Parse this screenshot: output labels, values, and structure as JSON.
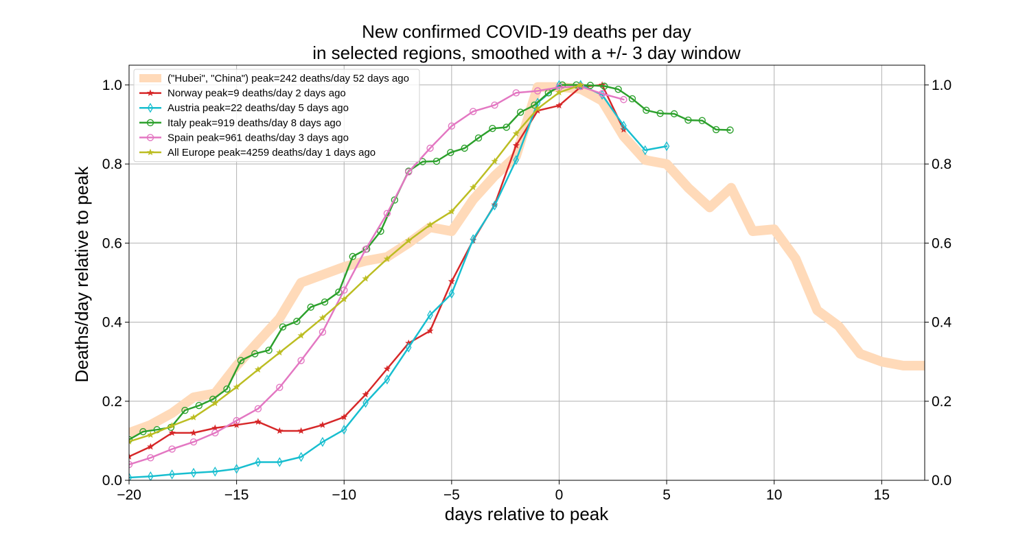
{
  "chart_data": {
    "type": "line",
    "title": [
      "New confirmed COVID-19 deaths per day",
      "in selected regions, smoothed with a +/- 3 day window"
    ],
    "xlabel": "days relative to peak",
    "ylabel": "Deaths/day relative to peak",
    "xlim": [
      -20,
      17
    ],
    "ylim": [
      0,
      1.05
    ],
    "xticks": [
      -20,
      -15,
      -10,
      -5,
      0,
      5,
      10,
      15
    ],
    "xtick_labels": [
      "−20",
      "−15",
      "−10",
      "−5",
      "0",
      "5",
      "10",
      "15"
    ],
    "yticks": [
      0,
      0.2,
      0.4,
      0.6,
      0.8,
      1.0
    ],
    "ytick_labels": [
      "0.0",
      "0.2",
      "0.4",
      "0.6",
      "0.8",
      "1.0"
    ],
    "grid": true,
    "right_axis_mirrored": true,
    "legend_position": "top-left",
    "series": [
      {
        "name": "(\"Hubei\", \"China\") peak=242 deaths/day 52 days ago",
        "color": "#ffdab9",
        "marker": "none",
        "thick": true,
        "x": [
          -20,
          -19,
          -18,
          -17,
          -16,
          -15,
          -14,
          -13,
          -12,
          -11,
          -10,
          -9,
          -8,
          -7,
          -6,
          -5,
          -4,
          -3,
          -2,
          -1,
          0,
          1,
          2,
          3,
          4,
          5,
          6,
          7,
          8,
          9,
          10,
          11,
          12,
          13,
          14,
          15,
          16,
          17
        ],
        "y": [
          0.12,
          0.14,
          0.17,
          0.21,
          0.22,
          0.29,
          0.35,
          0.41,
          0.5,
          0.52,
          0.54,
          0.555,
          0.565,
          0.6,
          0.64,
          0.63,
          0.71,
          0.77,
          0.82,
          0.995,
          0.995,
          0.99,
          0.96,
          0.87,
          0.81,
          0.8,
          0.74,
          0.69,
          0.74,
          0.63,
          0.635,
          0.56,
          0.43,
          0.39,
          0.32,
          0.3,
          0.29,
          0.29
        ]
      },
      {
        "name": "Norway peak=9 deaths/day 2 days ago",
        "color": "#d62728",
        "marker": "star",
        "x": [
          -20,
          -19,
          -18,
          -17,
          -16,
          -15,
          -14,
          -13,
          -12,
          -11,
          -10,
          -9,
          -8,
          -7,
          -6,
          -5,
          -4,
          -3,
          -2,
          -1,
          0,
          1,
          2,
          3
        ],
        "y": [
          0.06,
          0.085,
          0.12,
          0.12,
          0.132,
          0.14,
          0.148,
          0.125,
          0.125,
          0.14,
          0.16,
          0.217,
          0.282,
          0.347,
          0.378,
          0.503,
          0.607,
          0.697,
          0.847,
          0.935,
          0.948,
          0.995,
          1.0,
          0.887
        ]
      },
      {
        "name": "Austria peak=22 deaths/day 5 days ago",
        "color": "#17becf",
        "marker": "thin_diamond",
        "x": [
          -20,
          -19,
          -18,
          -17,
          -16,
          -15,
          -14,
          -13,
          -12,
          -11,
          -10,
          -9,
          -8,
          -7,
          -6,
          -5,
          -4,
          -3,
          -2,
          -1,
          0,
          1,
          2,
          3,
          4,
          5
        ],
        "y": [
          0.007,
          0.01,
          0.015,
          0.019,
          0.022,
          0.029,
          0.046,
          0.046,
          0.059,
          0.097,
          0.128,
          0.196,
          0.255,
          0.336,
          0.418,
          0.472,
          0.61,
          0.695,
          0.81,
          0.955,
          1.0,
          1.0,
          0.975,
          0.897,
          0.835,
          0.845
        ]
      },
      {
        "name": "Italy peak=919 deaths/day 8 days ago",
        "color": "#2ca02c",
        "marker": "circle",
        "x": [
          -20,
          -19.35,
          -18.7,
          -18.05,
          -17.4,
          -16.75,
          -16.1,
          -15.45,
          -14.8,
          -14.15,
          -13.5,
          -12.85,
          -12.2,
          -11.55,
          -10.9,
          -10.25,
          -9.6,
          -8.95,
          -8.3,
          -7.65,
          -7,
          -6.35,
          -5.7,
          -5.05,
          -4.4,
          -3.75,
          -3.1,
          -2.45,
          -1.8,
          -1.15,
          -0.5,
          0.15,
          0.8,
          1.45,
          2.1,
          2.75,
          3.4,
          4.05,
          4.7,
          5.35,
          6,
          6.65,
          7.3,
          7.95
        ],
        "y": [
          0.103,
          0.123,
          0.128,
          0.134,
          0.177,
          0.189,
          0.205,
          0.231,
          0.303,
          0.32,
          0.329,
          0.388,
          0.402,
          0.438,
          0.451,
          0.476,
          0.566,
          0.585,
          0.63,
          0.709,
          0.782,
          0.806,
          0.807,
          0.829,
          0.84,
          0.866,
          0.89,
          0.893,
          0.931,
          0.949,
          0.98,
          1.0,
          1.0,
          0.999,
          0.997,
          0.989,
          0.965,
          0.936,
          0.928,
          0.927,
          0.911,
          0.91,
          0.887,
          0.886
        ]
      },
      {
        "name": "Spain peak=961 deaths/day 3 days ago",
        "color": "#e377c2",
        "marker": "circle",
        "x": [
          -20,
          -19,
          -18,
          -17,
          -16,
          -15,
          -14,
          -13,
          -12,
          -11,
          -10,
          -9,
          -8,
          -7,
          -6,
          -5,
          -4,
          -3,
          -2,
          -1,
          0,
          1,
          2,
          3
        ],
        "y": [
          0.04,
          0.057,
          0.079,
          0.097,
          0.12,
          0.151,
          0.181,
          0.235,
          0.303,
          0.375,
          0.481,
          0.584,
          0.675,
          0.78,
          0.84,
          0.896,
          0.933,
          0.949,
          0.98,
          0.985,
          0.994,
          0.996,
          0.978,
          0.963
        ]
      },
      {
        "name": "All Europe peak=4259 deaths/day 1 days ago",
        "color": "#bcbd22",
        "marker": "star",
        "x": [
          -20,
          -19,
          -18,
          -17,
          -16,
          -15,
          -14,
          -13,
          -12,
          -11,
          -10,
          -9,
          -8,
          -7,
          -6,
          -5,
          -4,
          -3,
          -2,
          -1,
          0,
          1
        ],
        "y": [
          0.098,
          0.115,
          0.138,
          0.159,
          0.195,
          0.236,
          0.28,
          0.323,
          0.366,
          0.411,
          0.458,
          0.51,
          0.56,
          0.606,
          0.646,
          0.68,
          0.741,
          0.807,
          0.877,
          0.94,
          0.981,
          1.0
        ]
      }
    ]
  }
}
